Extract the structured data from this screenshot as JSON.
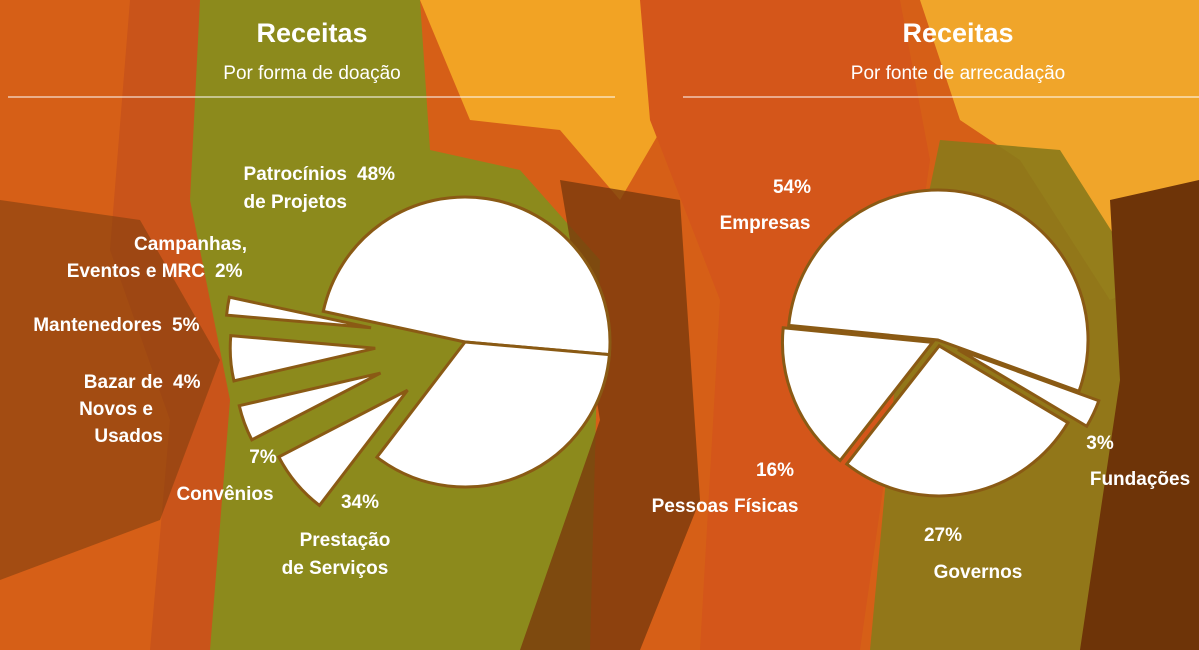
{
  "chart_data": [
    {
      "type": "pie",
      "title": "Receitas",
      "subtitle": "Por forma de doação",
      "color": "#ffffff",
      "categories": [
        [
          "Patrocínios",
          "de Projetos"
        ],
        [
          "Campanhas,",
          "Eventos e MRC"
        ],
        [
          "Mantenedores"
        ],
        [
          "Bazar de",
          "Novos e",
          "Usados"
        ],
        [
          "Convênios"
        ],
        [
          "Prestação",
          "de Serviços"
        ]
      ],
      "values": [
        48,
        2,
        5,
        4,
        7,
        34
      ],
      "value_labels": [
        "48%",
        "2%",
        "5%",
        "4%",
        "7%",
        "34%"
      ]
    },
    {
      "type": "pie",
      "title": "Receitas",
      "subtitle": "Por fonte de arrecadação",
      "color": "#ffffff",
      "categories": [
        [
          "Empresas"
        ],
        [
          "Pessoas Físicas"
        ],
        [
          "Governos"
        ],
        [
          "Fundações"
        ]
      ],
      "values": [
        54,
        16,
        27,
        3
      ],
      "value_labels": [
        "54%",
        "16%",
        "27%",
        "3%"
      ]
    }
  ]
}
